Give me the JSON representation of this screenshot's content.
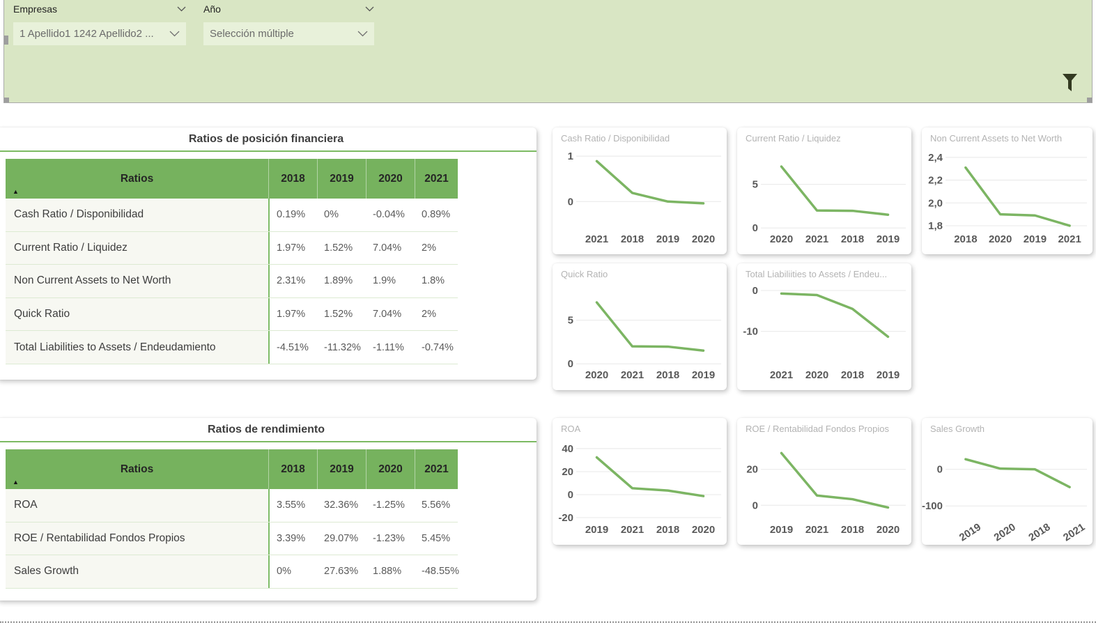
{
  "filter_bar": {
    "slicers": [
      {
        "label": "Empresas",
        "value": "1 Apellido1 1242 Apellido2 ..."
      },
      {
        "label": "Año",
        "value": "Selección múltiple"
      }
    ]
  },
  "tables": [
    {
      "title": "Ratios de posición financiera",
      "columns": [
        "Ratios",
        "2018",
        "2019",
        "2020",
        "2021"
      ],
      "sort_icon": "▲",
      "rows": [
        {
          "label": "Cash Ratio / Disponibilidad",
          "values": [
            "0.19%",
            "0%",
            "-0.04%",
            "0.89%"
          ]
        },
        {
          "label": "Current Ratio / Liquidez",
          "values": [
            "1.97%",
            "1.52%",
            "7.04%",
            "2%"
          ]
        },
        {
          "label": "Non Current Assets to Net Worth",
          "values": [
            "2.31%",
            "1.89%",
            "1.9%",
            "1.8%"
          ]
        },
        {
          "label": "Quick Ratio",
          "values": [
            "1.97%",
            "1.52%",
            "7.04%",
            "2%"
          ]
        },
        {
          "label": "Total Liabilities to Assets / Endeudamiento",
          "values": [
            "-4.51%",
            "-11.32%",
            "-1.11%",
            "-0.74%"
          ]
        }
      ]
    },
    {
      "title": "Ratios de rendimiento",
      "columns": [
        "Ratios",
        "2018",
        "2019",
        "2020",
        "2021"
      ],
      "sort_icon": "▲",
      "rows": [
        {
          "label": "ROA",
          "values": [
            "3.55%",
            "32.36%",
            "-1.25%",
            "5.56%"
          ]
        },
        {
          "label": "ROE / Rentabilidad Fondos Propios",
          "values": [
            "3.39%",
            "29.07%",
            "-1.23%",
            "5.45%"
          ]
        },
        {
          "label": "Sales Growth",
          "values": [
            "0%",
            "27.63%",
            "1.88%",
            "-48.55%"
          ]
        }
      ]
    }
  ],
  "chart_data": [
    {
      "type": "line",
      "title": "Cash Ratio / Disponibilidad",
      "categories": [
        "2021",
        "2018",
        "2019",
        "2020"
      ],
      "values": [
        0.89,
        0.19,
        0,
        -0.04
      ],
      "yticks": [
        {
          "v": 1,
          "label": "1"
        },
        {
          "v": 0,
          "label": "0"
        }
      ],
      "ylim": [
        -0.64,
        1.11
      ],
      "rotate_x": false,
      "grid": "horizontal",
      "legend": "none"
    },
    {
      "type": "line",
      "title": "Current Ratio / Liquidez",
      "categories": [
        "2020",
        "2021",
        "2018",
        "2019"
      ],
      "values": [
        7.04,
        2,
        1.97,
        1.52
      ],
      "yticks": [
        {
          "v": 5,
          "label": "5"
        },
        {
          "v": 0,
          "label": "0"
        }
      ],
      "ylim": [
        -0.3,
        8.8
      ],
      "rotate_x": false,
      "grid": "horizontal",
      "legend": "none"
    },
    {
      "type": "line",
      "title": "Non Current Assets to Net Worth",
      "categories": [
        "2018",
        "2020",
        "2019",
        "2021"
      ],
      "values": [
        2.31,
        1.9,
        1.89,
        1.8
      ],
      "yticks": [
        {
          "v": 2.4,
          "label": "2,4"
        },
        {
          "v": 2.2,
          "label": "2,2"
        },
        {
          "v": 2.0,
          "label": "2,0"
        },
        {
          "v": 1.8,
          "label": "1,8"
        }
      ],
      "ylim": [
        1.757,
        2.454
      ],
      "rotate_x": false,
      "grid": "horizontal",
      "legend": "none"
    },
    {
      "type": "line",
      "title": "Quick Ratio",
      "categories": [
        "2020",
        "2021",
        "2018",
        "2019"
      ],
      "values": [
        7.04,
        2,
        1.97,
        1.52
      ],
      "yticks": [
        {
          "v": 5,
          "label": "5"
        },
        {
          "v": 0,
          "label": "0"
        }
      ],
      "ylim": [
        -0.3,
        8.8
      ],
      "rotate_x": false,
      "grid": "horizontal",
      "legend": "none"
    },
    {
      "type": "line",
      "title": "Total Liabiliities to Assets / Endeu...",
      "categories": [
        "2021",
        "2020",
        "2018",
        "2019"
      ],
      "values": [
        -0.74,
        -1.11,
        -4.51,
        -11.32
      ],
      "yticks": [
        {
          "v": 0,
          "label": "0"
        },
        {
          "v": -10,
          "label": "-10"
        }
      ],
      "ylim": [
        -18.6,
        0.85
      ],
      "rotate_x": false,
      "grid": "horizontal",
      "legend": "none"
    },
    {
      "type": "line",
      "title": "ROA",
      "categories": [
        "2019",
        "2021",
        "2018",
        "2020"
      ],
      "values": [
        32.36,
        5.56,
        3.55,
        -1.25
      ],
      "yticks": [
        {
          "v": 40,
          "label": "40"
        },
        {
          "v": 20,
          "label": "20"
        },
        {
          "v": 0,
          "label": "0"
        },
        {
          "v": -20,
          "label": "-20"
        }
      ],
      "ylim": [
        -23,
        46
      ],
      "rotate_x": false,
      "grid": "horizontal",
      "legend": "none"
    },
    {
      "type": "line",
      "title": "ROE / Rentabilidad Fondos Propios",
      "categories": [
        "2019",
        "2021",
        "2018",
        "2020"
      ],
      "values": [
        29.07,
        5.45,
        3.39,
        -1.23
      ],
      "yticks": [
        {
          "v": 20,
          "label": "20"
        },
        {
          "v": 0,
          "label": "0"
        }
      ],
      "ylim": [
        -8.8,
        35.4
      ],
      "rotate_x": false,
      "grid": "horizontal",
      "legend": "none"
    },
    {
      "type": "line",
      "title": "Sales Growth",
      "categories": [
        "2019",
        "2020",
        "2018",
        "2021"
      ],
      "values": [
        27.63,
        1.88,
        0,
        -48.55
      ],
      "yticks": [
        {
          "v": 0,
          "label": "0"
        },
        {
          "v": -100,
          "label": "-100"
        }
      ],
      "ylim": [
        -141.5,
        75.5
      ],
      "rotate_x": true,
      "grid": "horizontal",
      "legend": "none"
    }
  ],
  "colors": {
    "header_green": "#76b25e",
    "line_green": "#7cb563",
    "underline_green": "#7cba62",
    "panel_green": "#d9e6c4",
    "dropdown_green": "#e8f1da",
    "row_bg": "#f7f8f2",
    "row_separator": "#dcead2",
    "funnel_dark": "#333a21"
  }
}
